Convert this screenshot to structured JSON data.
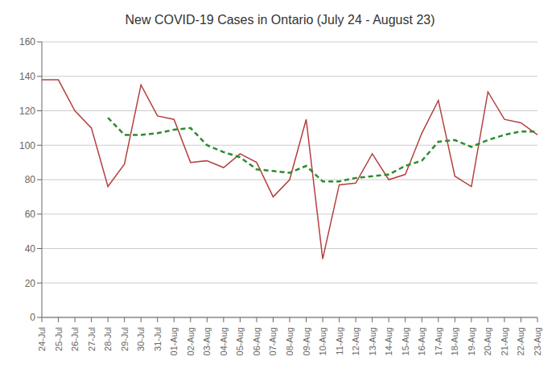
{
  "chart_data": {
    "type": "line",
    "title": "New COVID-19 Cases in Ontario (July 24 - August 23)",
    "categories": [
      "24-Jul",
      "25-Jul",
      "26-Jul",
      "27-Jul",
      "28-Jul",
      "29-Jul",
      "30-Jul",
      "31-Jul",
      "01-Aug",
      "02-Aug",
      "03-Aug",
      "04-Aug",
      "05-Aug",
      "06-Aug",
      "07-Aug",
      "08-Aug",
      "09-Aug",
      "10-Aug",
      "11-Aug",
      "12-Aug",
      "13-Aug",
      "14-Aug",
      "15-Aug",
      "16-Aug",
      "17-Aug",
      "18-Aug",
      "19-Aug",
      "20-Aug",
      "21-Aug",
      "22-Aug",
      "23-Aug"
    ],
    "series": [
      {
        "color": "#b54040",
        "line_style": "solid",
        "values": [
          138,
          138,
          120,
          110,
          76,
          89,
          135,
          117,
          115,
          90,
          91,
          87,
          95,
          90,
          70,
          80,
          115,
          34,
          77,
          78,
          95,
          80,
          83,
          107,
          126,
          82,
          76,
          131,
          115,
          113,
          106
        ]
      },
      {
        "color": "#2e8b2e",
        "line_style": "dashed",
        "values": [
          null,
          null,
          null,
          null,
          116,
          106,
          106,
          107,
          109,
          110,
          100,
          96,
          93,
          86,
          85,
          84,
          88,
          79,
          79,
          81,
          82,
          83,
          88,
          91,
          102,
          103,
          99,
          103,
          106,
          108,
          108
        ]
      }
    ],
    "ylim": [
      0,
      160
    ],
    "yticks": [
      0,
      20,
      40,
      60,
      80,
      100,
      120,
      140,
      160
    ],
    "grid": true
  }
}
